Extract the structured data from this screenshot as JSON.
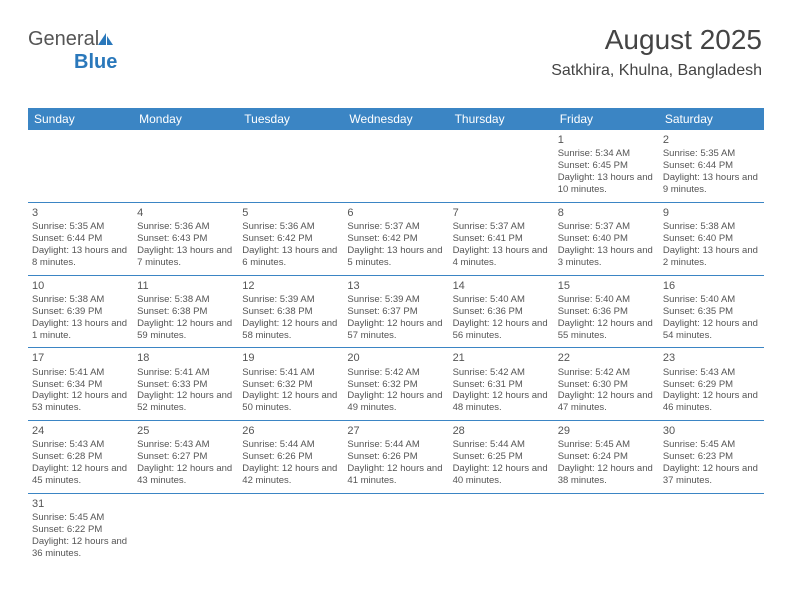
{
  "logo": {
    "word1": "General",
    "word2": "Blue"
  },
  "header": {
    "title": "August 2025",
    "location": "Satkhira, Khulna, Bangladesh"
  },
  "colors": {
    "header_bg": "#3b85c4",
    "header_text": "#ffffff",
    "border": "#3b85c4",
    "text": "#555555",
    "logo_blue": "#2a78bb"
  },
  "day_headers": [
    "Sunday",
    "Monday",
    "Tuesday",
    "Wednesday",
    "Thursday",
    "Friday",
    "Saturday"
  ],
  "weeks": [
    [
      {
        "empty": true
      },
      {
        "empty": true
      },
      {
        "empty": true
      },
      {
        "empty": true
      },
      {
        "empty": true
      },
      {
        "day": "1",
        "sunrise": "Sunrise: 5:34 AM",
        "sunset": "Sunset: 6:45 PM",
        "daylight": "Daylight: 13 hours and 10 minutes."
      },
      {
        "day": "2",
        "sunrise": "Sunrise: 5:35 AM",
        "sunset": "Sunset: 6:44 PM",
        "daylight": "Daylight: 13 hours and 9 minutes."
      }
    ],
    [
      {
        "day": "3",
        "sunrise": "Sunrise: 5:35 AM",
        "sunset": "Sunset: 6:44 PM",
        "daylight": "Daylight: 13 hours and 8 minutes."
      },
      {
        "day": "4",
        "sunrise": "Sunrise: 5:36 AM",
        "sunset": "Sunset: 6:43 PM",
        "daylight": "Daylight: 13 hours and 7 minutes."
      },
      {
        "day": "5",
        "sunrise": "Sunrise: 5:36 AM",
        "sunset": "Sunset: 6:42 PM",
        "daylight": "Daylight: 13 hours and 6 minutes."
      },
      {
        "day": "6",
        "sunrise": "Sunrise: 5:37 AM",
        "sunset": "Sunset: 6:42 PM",
        "daylight": "Daylight: 13 hours and 5 minutes."
      },
      {
        "day": "7",
        "sunrise": "Sunrise: 5:37 AM",
        "sunset": "Sunset: 6:41 PM",
        "daylight": "Daylight: 13 hours and 4 minutes."
      },
      {
        "day": "8",
        "sunrise": "Sunrise: 5:37 AM",
        "sunset": "Sunset: 6:40 PM",
        "daylight": "Daylight: 13 hours and 3 minutes."
      },
      {
        "day": "9",
        "sunrise": "Sunrise: 5:38 AM",
        "sunset": "Sunset: 6:40 PM",
        "daylight": "Daylight: 13 hours and 2 minutes."
      }
    ],
    [
      {
        "day": "10",
        "sunrise": "Sunrise: 5:38 AM",
        "sunset": "Sunset: 6:39 PM",
        "daylight": "Daylight: 13 hours and 1 minute."
      },
      {
        "day": "11",
        "sunrise": "Sunrise: 5:38 AM",
        "sunset": "Sunset: 6:38 PM",
        "daylight": "Daylight: 12 hours and 59 minutes."
      },
      {
        "day": "12",
        "sunrise": "Sunrise: 5:39 AM",
        "sunset": "Sunset: 6:38 PM",
        "daylight": "Daylight: 12 hours and 58 minutes."
      },
      {
        "day": "13",
        "sunrise": "Sunrise: 5:39 AM",
        "sunset": "Sunset: 6:37 PM",
        "daylight": "Daylight: 12 hours and 57 minutes."
      },
      {
        "day": "14",
        "sunrise": "Sunrise: 5:40 AM",
        "sunset": "Sunset: 6:36 PM",
        "daylight": "Daylight: 12 hours and 56 minutes."
      },
      {
        "day": "15",
        "sunrise": "Sunrise: 5:40 AM",
        "sunset": "Sunset: 6:36 PM",
        "daylight": "Daylight: 12 hours and 55 minutes."
      },
      {
        "day": "16",
        "sunrise": "Sunrise: 5:40 AM",
        "sunset": "Sunset: 6:35 PM",
        "daylight": "Daylight: 12 hours and 54 minutes."
      }
    ],
    [
      {
        "day": "17",
        "sunrise": "Sunrise: 5:41 AM",
        "sunset": "Sunset: 6:34 PM",
        "daylight": "Daylight: 12 hours and 53 minutes."
      },
      {
        "day": "18",
        "sunrise": "Sunrise: 5:41 AM",
        "sunset": "Sunset: 6:33 PM",
        "daylight": "Daylight: 12 hours and 52 minutes."
      },
      {
        "day": "19",
        "sunrise": "Sunrise: 5:41 AM",
        "sunset": "Sunset: 6:32 PM",
        "daylight": "Daylight: 12 hours and 50 minutes."
      },
      {
        "day": "20",
        "sunrise": "Sunrise: 5:42 AM",
        "sunset": "Sunset: 6:32 PM",
        "daylight": "Daylight: 12 hours and 49 minutes."
      },
      {
        "day": "21",
        "sunrise": "Sunrise: 5:42 AM",
        "sunset": "Sunset: 6:31 PM",
        "daylight": "Daylight: 12 hours and 48 minutes."
      },
      {
        "day": "22",
        "sunrise": "Sunrise: 5:42 AM",
        "sunset": "Sunset: 6:30 PM",
        "daylight": "Daylight: 12 hours and 47 minutes."
      },
      {
        "day": "23",
        "sunrise": "Sunrise: 5:43 AM",
        "sunset": "Sunset: 6:29 PM",
        "daylight": "Daylight: 12 hours and 46 minutes."
      }
    ],
    [
      {
        "day": "24",
        "sunrise": "Sunrise: 5:43 AM",
        "sunset": "Sunset: 6:28 PM",
        "daylight": "Daylight: 12 hours and 45 minutes."
      },
      {
        "day": "25",
        "sunrise": "Sunrise: 5:43 AM",
        "sunset": "Sunset: 6:27 PM",
        "daylight": "Daylight: 12 hours and 43 minutes."
      },
      {
        "day": "26",
        "sunrise": "Sunrise: 5:44 AM",
        "sunset": "Sunset: 6:26 PM",
        "daylight": "Daylight: 12 hours and 42 minutes."
      },
      {
        "day": "27",
        "sunrise": "Sunrise: 5:44 AM",
        "sunset": "Sunset: 6:26 PM",
        "daylight": "Daylight: 12 hours and 41 minutes."
      },
      {
        "day": "28",
        "sunrise": "Sunrise: 5:44 AM",
        "sunset": "Sunset: 6:25 PM",
        "daylight": "Daylight: 12 hours and 40 minutes."
      },
      {
        "day": "29",
        "sunrise": "Sunrise: 5:45 AM",
        "sunset": "Sunset: 6:24 PM",
        "daylight": "Daylight: 12 hours and 38 minutes."
      },
      {
        "day": "30",
        "sunrise": "Sunrise: 5:45 AM",
        "sunset": "Sunset: 6:23 PM",
        "daylight": "Daylight: 12 hours and 37 minutes."
      }
    ],
    [
      {
        "day": "31",
        "sunrise": "Sunrise: 5:45 AM",
        "sunset": "Sunset: 6:22 PM",
        "daylight": "Daylight: 12 hours and 36 minutes."
      },
      {
        "empty": true
      },
      {
        "empty": true
      },
      {
        "empty": true
      },
      {
        "empty": true
      },
      {
        "empty": true
      },
      {
        "empty": true
      }
    ]
  ]
}
